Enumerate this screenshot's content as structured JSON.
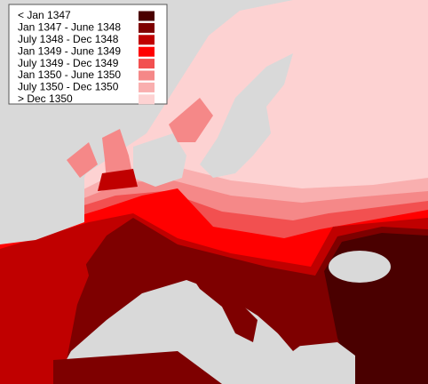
{
  "legend": {
    "items": [
      {
        "label": "< Jan 1347",
        "color": "#4a0000"
      },
      {
        "label": "Jan 1347 - June 1348",
        "color": "#7e0000"
      },
      {
        "label": "July 1348 - Dec 1348",
        "color": "#c00000"
      },
      {
        "label": "Jan 1349 - June 1349",
        "color": "#ff0000"
      },
      {
        "label": "July 1349 - Dec 1349",
        "color": "#f25050"
      },
      {
        "label": "Jan 1350 - June 1350",
        "color": "#f58888"
      },
      {
        "label": "July 1350 - Dec 1350",
        "color": "#f9afaf"
      },
      {
        "label": "> Dec 1350",
        "color": "#fdd2d2"
      }
    ]
  }
}
